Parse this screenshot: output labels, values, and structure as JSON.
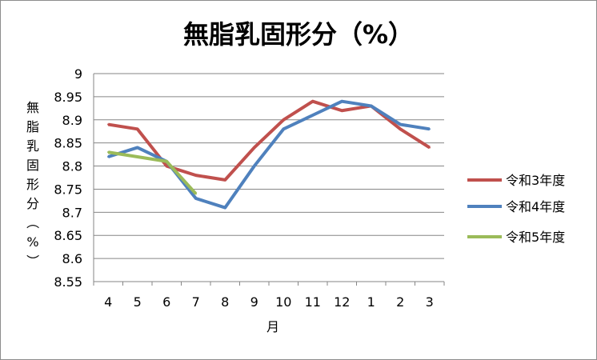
{
  "chart_data": {
    "type": "line",
    "title": "無脂乳固形分（%）",
    "xlabel": "月",
    "ylabel": "無脂乳固形分（%）",
    "categories": [
      "4",
      "5",
      "6",
      "7",
      "8",
      "9",
      "10",
      "11",
      "12",
      "1",
      "2",
      "3"
    ],
    "ylim": [
      8.55,
      9
    ],
    "yticks": [
      "9",
      "8.95",
      "8.9",
      "8.85",
      "8.8",
      "8.75",
      "8.7",
      "8.65",
      "8.6",
      "8.55"
    ],
    "grid": true,
    "legend_position": "right",
    "series": [
      {
        "name": "令和3年度",
        "color": "#c0504d",
        "values": [
          8.89,
          8.88,
          8.8,
          8.78,
          8.77,
          8.84,
          8.9,
          8.94,
          8.92,
          8.93,
          8.88,
          8.84
        ]
      },
      {
        "name": "令和4年度",
        "color": "#4f81bd",
        "values": [
          8.82,
          8.84,
          8.81,
          8.73,
          8.71,
          8.8,
          8.88,
          8.91,
          8.94,
          8.93,
          8.89,
          8.88
        ]
      },
      {
        "name": "令和5年度",
        "color": "#9bbb59",
        "values": [
          8.83,
          8.82,
          8.81,
          8.74,
          null,
          null,
          null,
          null,
          null,
          null,
          null,
          null
        ]
      }
    ]
  }
}
